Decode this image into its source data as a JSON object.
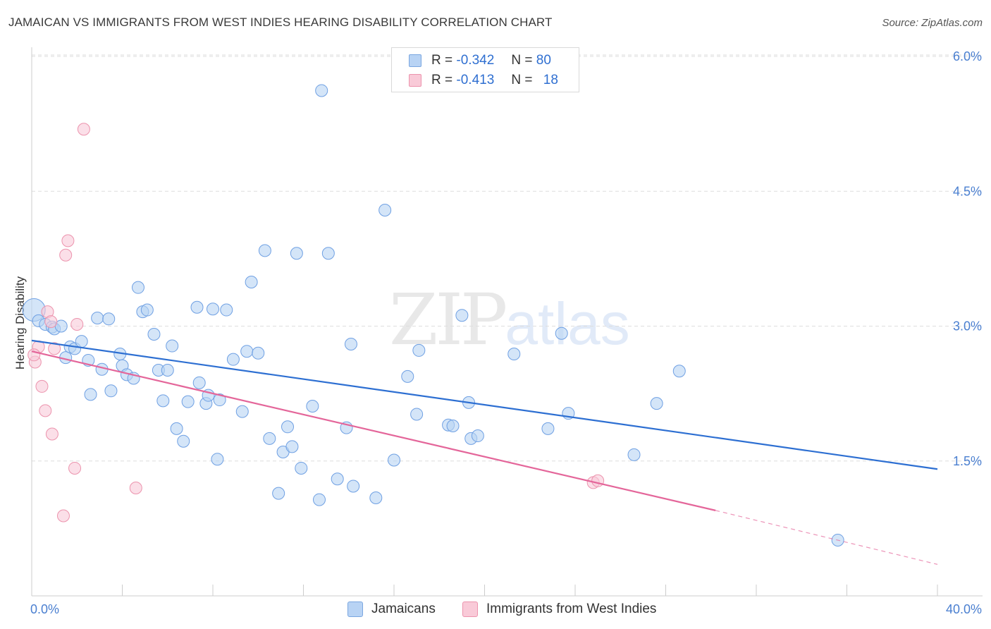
{
  "title": "JAMAICAN VS IMMIGRANTS FROM WEST INDIES HEARING DISABILITY CORRELATION CHART",
  "source": "Source: ZipAtlas.com",
  "watermark": {
    "zip": "ZIP",
    "atlas": "atlas"
  },
  "stats": [
    {
      "r_label": "R =",
      "r_value": "-0.342",
      "n_label": "N =",
      "n_value": "80",
      "color": "#a9c8f0",
      "border": "#7aa6e0"
    },
    {
      "r_label": "R =",
      "r_value": "-0.413",
      "n_label": "N =",
      "n_value": "18",
      "color": "#f7bfd0",
      "border": "#ec93ad"
    }
  ],
  "legend": [
    {
      "label": "Jamaicans",
      "color": "#b8d3f4",
      "border": "#7aa6e0"
    },
    {
      "label": "Immigrants from West Indies",
      "color": "#f9cad8",
      "border": "#ec93ad"
    }
  ],
  "chart_data": {
    "type": "scatter",
    "title": "JAMAICAN VS IMMIGRANTS FROM WEST INDIES HEARING DISABILITY CORRELATION CHART",
    "xlabel": "",
    "ylabel": "Hearing Disability",
    "xlim": [
      0,
      40
    ],
    "ylim": [
      0,
      6.2
    ],
    "x_tick_labels": [
      {
        "value": 0,
        "label": "0.0%"
      },
      {
        "value": 40,
        "label": "40.0%"
      }
    ],
    "y_ticks": [
      {
        "value": 1.5,
        "label": "1.5%"
      },
      {
        "value": 3.0,
        "label": "3.0%"
      },
      {
        "value": 4.5,
        "label": "4.5%"
      },
      {
        "value": 6.0,
        "label": "6.0%"
      }
    ],
    "grid": true,
    "legend_position": "bottom-center",
    "series": [
      {
        "name": "Jamaicans",
        "color": "#6fa0e3",
        "fill": "#b8d3f4",
        "trend": {
          "x": [
            0,
            40
          ],
          "y": [
            2.84,
            1.41
          ],
          "color": "#2d6fd2"
        },
        "points": [
          [
            0.1,
            3.18
          ],
          [
            0.3,
            3.06
          ],
          [
            0.6,
            3.02
          ],
          [
            0.9,
            2.99
          ],
          [
            1.0,
            2.97
          ],
          [
            1.3,
            3.0
          ],
          [
            1.5,
            2.65
          ],
          [
            1.7,
            2.77
          ],
          [
            1.9,
            2.75
          ],
          [
            2.2,
            2.83
          ],
          [
            2.5,
            2.62
          ],
          [
            2.6,
            2.24
          ],
          [
            2.9,
            3.09
          ],
          [
            3.1,
            2.52
          ],
          [
            3.4,
            3.08
          ],
          [
            3.5,
            2.28
          ],
          [
            3.9,
            2.69
          ],
          [
            4.0,
            2.56
          ],
          [
            4.2,
            2.46
          ],
          [
            4.5,
            2.42
          ],
          [
            4.7,
            3.43
          ],
          [
            4.9,
            3.16
          ],
          [
            5.1,
            3.18
          ],
          [
            5.4,
            2.91
          ],
          [
            5.6,
            2.51
          ],
          [
            5.8,
            2.17
          ],
          [
            6.0,
            2.51
          ],
          [
            6.2,
            2.78
          ],
          [
            6.4,
            1.86
          ],
          [
            6.7,
            1.72
          ],
          [
            6.9,
            2.16
          ],
          [
            7.3,
            3.21
          ],
          [
            7.4,
            2.37
          ],
          [
            7.7,
            2.14
          ],
          [
            7.8,
            2.23
          ],
          [
            8.0,
            3.19
          ],
          [
            8.2,
            1.52
          ],
          [
            8.3,
            2.18
          ],
          [
            8.6,
            3.18
          ],
          [
            8.9,
            2.63
          ],
          [
            9.3,
            2.05
          ],
          [
            9.5,
            2.72
          ],
          [
            9.7,
            3.49
          ],
          [
            10.0,
            2.7
          ],
          [
            10.3,
            3.84
          ],
          [
            10.5,
            1.75
          ],
          [
            10.9,
            1.14
          ],
          [
            11.1,
            1.6
          ],
          [
            11.3,
            1.88
          ],
          [
            11.5,
            1.66
          ],
          [
            11.7,
            3.81
          ],
          [
            11.9,
            1.42
          ],
          [
            12.4,
            2.11
          ],
          [
            12.7,
            1.07
          ],
          [
            12.8,
            5.62
          ],
          [
            13.1,
            3.81
          ],
          [
            13.5,
            1.3
          ],
          [
            13.9,
            1.87
          ],
          [
            14.1,
            2.8
          ],
          [
            14.2,
            1.22
          ],
          [
            15.2,
            1.09
          ],
          [
            15.6,
            4.29
          ],
          [
            16.0,
            1.51
          ],
          [
            16.6,
            2.44
          ],
          [
            17.0,
            2.02
          ],
          [
            17.1,
            2.73
          ],
          [
            18.4,
            1.9
          ],
          [
            18.6,
            1.89
          ],
          [
            19.0,
            3.12
          ],
          [
            19.3,
            2.15
          ],
          [
            19.4,
            1.75
          ],
          [
            19.7,
            1.78
          ],
          [
            21.3,
            2.69
          ],
          [
            22.8,
            1.86
          ],
          [
            23.4,
            2.92
          ],
          [
            23.7,
            2.03
          ],
          [
            26.6,
            1.57
          ],
          [
            27.6,
            2.14
          ],
          [
            28.6,
            2.5
          ],
          [
            35.6,
            0.62
          ]
        ]
      },
      {
        "name": "Immigrants from West Indies",
        "color": "#ec93ad",
        "fill": "#f9cad8",
        "trend": {
          "x": [
            0,
            30.2
          ],
          "y": [
            2.72,
            0.95
          ],
          "x_dash_end": 40,
          "y_dash_end": 0.35,
          "color": "#e4669a"
        },
        "points": [
          [
            0.15,
            2.6
          ],
          [
            0.3,
            2.77
          ],
          [
            0.45,
            2.33
          ],
          [
            0.6,
            2.06
          ],
          [
            0.7,
            3.16
          ],
          [
            0.85,
            3.05
          ],
          [
            0.9,
            1.8
          ],
          [
            1.0,
            2.75
          ],
          [
            1.4,
            0.89
          ],
          [
            1.5,
            3.79
          ],
          [
            1.6,
            3.95
          ],
          [
            1.9,
            1.42
          ],
          [
            2.0,
            3.02
          ],
          [
            2.3,
            5.19
          ],
          [
            4.6,
            1.2
          ],
          [
            24.8,
            1.26
          ],
          [
            25.0,
            1.28
          ],
          [
            0.1,
            2.68
          ]
        ]
      }
    ]
  }
}
